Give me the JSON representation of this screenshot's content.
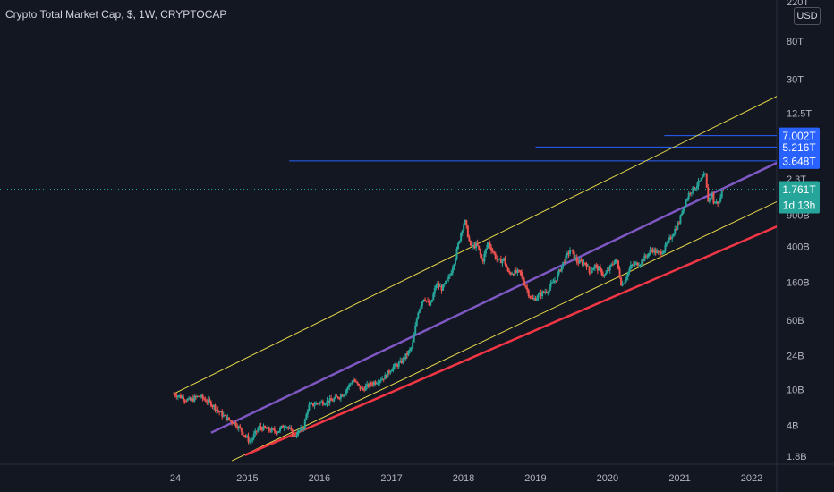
{
  "header": {
    "title": "Crypto Total Market Cap, $, 1W, CRYPTOCAP",
    "currency": "USD"
  },
  "colors": {
    "background": "#131722",
    "up": "#26a69a",
    "down": "#ef5350",
    "channel_yellow": "#e8d84a",
    "channel_purple": "#7e57c2",
    "support_red": "#f23645",
    "level_blue": "#2962ff",
    "last_price_tag": "#26a69a"
  },
  "chart_data": {
    "type": "line",
    "title": "Crypto Total Market Cap, $, 1W, CRYPTOCAP",
    "scale": "log",
    "ylim": [
      1500000000.0,
      250000000000000.0
    ],
    "xlim": [
      "2013-12-20",
      "2022-12-20"
    ],
    "y_tick_labels": [
      {
        "label": "220T",
        "value": 220000000000000.0
      },
      {
        "label": "80T",
        "value": 80000000000000.0
      },
      {
        "label": "30T",
        "value": 30000000000000.0
      },
      {
        "label": "12.5T",
        "value": 12500000000000.0
      },
      {
        "label": "2.3T",
        "value": 2300000000000.0
      },
      {
        "label": "900B",
        "value": 900000000000.0
      },
      {
        "label": "400B",
        "value": 400000000000.0
      },
      {
        "label": "160B",
        "value": 160000000000.0
      },
      {
        "label": "60B",
        "value": 60000000000.0
      },
      {
        "label": "24B",
        "value": 24000000000.0
      },
      {
        "label": "10B",
        "value": 10000000000.0
      },
      {
        "label": "4B",
        "value": 4000000000.0
      },
      {
        "label": "1.8B",
        "value": 1800000000.0
      }
    ],
    "x_tick_labels": [
      {
        "label": "24",
        "date": "2014-01-01"
      },
      {
        "label": "2015",
        "date": "2015-01-01"
      },
      {
        "label": "2016",
        "date": "2016-01-01"
      },
      {
        "label": "2017",
        "date": "2017-01-01"
      },
      {
        "label": "2018",
        "date": "2018-01-01"
      },
      {
        "label": "2019",
        "date": "2019-01-01"
      },
      {
        "label": "2020",
        "date": "2020-01-01"
      },
      {
        "label": "2021",
        "date": "2021-01-01"
      },
      {
        "label": "2022",
        "date": "2022-01-01"
      }
    ],
    "series": [
      {
        "points": [
          [
            "2013-12-24",
            9000000000.0
          ],
          [
            "2014-02-15",
            8000000000.0
          ],
          [
            "2014-03-15",
            7500000000.0
          ],
          [
            "2014-05-01",
            8500000000.0
          ],
          [
            "2014-07-01",
            7000000000.0
          ],
          [
            "2014-08-15",
            5500000000.0
          ],
          [
            "2014-09-15",
            4800000000.0
          ],
          [
            "2014-11-01",
            4200000000.0
          ],
          [
            "2015-01-15",
            2600000000.0
          ],
          [
            "2015-03-01",
            3800000000.0
          ],
          [
            "2015-05-01",
            3500000000.0
          ],
          [
            "2015-06-01",
            3400000000.0
          ],
          [
            "2015-07-15",
            4100000000.0
          ],
          [
            "2015-08-25",
            3000000000.0
          ],
          [
            "2015-10-15",
            3900000000.0
          ],
          [
            "2015-11-05",
            6500000000.0
          ],
          [
            "2016-01-01",
            7200000000.0
          ],
          [
            "2016-03-01",
            7500000000.0
          ],
          [
            "2016-05-01",
            9000000000.0
          ],
          [
            "2016-06-20",
            13000000000.0
          ],
          [
            "2016-08-01",
            10000000000.0
          ],
          [
            "2016-10-01",
            12000000000.0
          ],
          [
            "2016-12-01",
            14000000000.0
          ],
          [
            "2017-01-01",
            17500000000.0
          ],
          [
            "2017-02-15",
            20000000000.0
          ],
          [
            "2017-03-15",
            24000000000.0
          ],
          [
            "2017-04-15",
            30000000000.0
          ],
          [
            "2017-05-15",
            75000000000.0
          ],
          [
            "2017-06-15",
            110000000000.0
          ],
          [
            "2017-07-15",
            85000000000.0
          ],
          [
            "2017-08-15",
            150000000000.0
          ],
          [
            "2017-09-15",
            135000000000.0
          ],
          [
            "2017-10-20",
            180000000000.0
          ],
          [
            "2017-11-20",
            300000000000.0
          ],
          [
            "2017-12-20",
            590000000000.0
          ],
          [
            "2018-01-07",
            790000000000.0
          ],
          [
            "2018-02-06",
            390000000000.0
          ],
          [
            "2018-03-10",
            420000000000.0
          ],
          [
            "2018-04-07",
            270000000000.0
          ],
          [
            "2018-05-05",
            450000000000.0
          ],
          [
            "2018-06-25",
            270000000000.0
          ],
          [
            "2018-07-25",
            290000000000.0
          ],
          [
            "2018-08-14",
            205000000000.0
          ],
          [
            "2018-10-15",
            205000000000.0
          ],
          [
            "2018-11-25",
            122000000000.0
          ],
          [
            "2018-12-15",
            100000000000.0
          ],
          [
            "2019-01-20",
            115000000000.0
          ],
          [
            "2019-03-01",
            130000000000.0
          ],
          [
            "2019-04-15",
            175000000000.0
          ],
          [
            "2019-05-20",
            260000000000.0
          ],
          [
            "2019-06-26",
            370000000000.0
          ],
          [
            "2019-08-01",
            270000000000.0
          ],
          [
            "2019-09-15",
            260000000000.0
          ],
          [
            "2019-10-01",
            205000000000.0
          ],
          [
            "2019-10-28",
            245000000000.0
          ],
          [
            "2019-12-18",
            190000000000.0
          ],
          [
            "2020-02-14",
            295000000000.0
          ],
          [
            "2020-03-13",
            145000000000.0
          ],
          [
            "2020-04-30",
            245000000000.0
          ],
          [
            "2020-06-15",
            265000000000.0
          ],
          [
            "2020-08-15",
            375000000000.0
          ],
          [
            "2020-09-15",
            330000000000.0
          ],
          [
            "2020-10-15",
            375000000000.0
          ],
          [
            "2020-11-25",
            550000000000.0
          ],
          [
            "2020-12-31",
            770000000000.0
          ],
          [
            "2021-01-15",
            1050000000000.0
          ],
          [
            "2021-02-21",
            1650000000000.0
          ],
          [
            "2021-03-15",
            1800000000000.0
          ],
          [
            "2021-04-14",
            2150000000000.0
          ],
          [
            "2021-05-12",
            2550000000000.0
          ],
          [
            "2021-05-23",
            1300000000000.0
          ],
          [
            "2021-06-15",
            1550000000000.0
          ],
          [
            "2021-06-22",
            1250000000000.0
          ],
          [
            "2021-07-20",
            1250000000000.0
          ],
          [
            "2021-08-01",
            1620000000000.0
          ],
          [
            "2021-08-10",
            1761000000000.0
          ]
        ]
      }
    ],
    "last_price": {
      "label": "1.761T",
      "countdown": "1d 13h"
    },
    "levels": [
      {
        "label": "7.002T",
        "value": 7002000000000.0,
        "start": "2020-10-15"
      },
      {
        "label": "5.216T",
        "value": 5216000000000.0,
        "start": "2019-01-01"
      },
      {
        "label": "3.648T",
        "value": 3648000000000.0,
        "start": "2015-08-01"
      }
    ],
    "trendlines": [
      {
        "name": "channel-upper-yellow",
        "color": "#e8d84a",
        "from": [
          "2013-12-24",
          9000000000.0
        ],
        "to": [
          "2022-12-20",
          34000000000000.0
        ]
      },
      {
        "name": "channel-middle-purple",
        "color": "#7e57c2",
        "from": [
          "2014-07-01",
          3300000000.0
        ],
        "to": [
          "2022-12-20",
          6000000000000.0
        ]
      },
      {
        "name": "channel-lower-yellow",
        "color": "#e8d84a",
        "from": [
          "2014-10-15",
          1600000000.0
        ],
        "to": [
          "2022-12-20",
          2200000000000.0
        ]
      },
      {
        "name": "support-red",
        "color": "#f23645",
        "from": [
          "2014-12-20",
          1850000000.0
        ],
        "to": [
          "2022-12-20",
          1100000000000.0
        ]
      }
    ],
    "grid": false
  }
}
